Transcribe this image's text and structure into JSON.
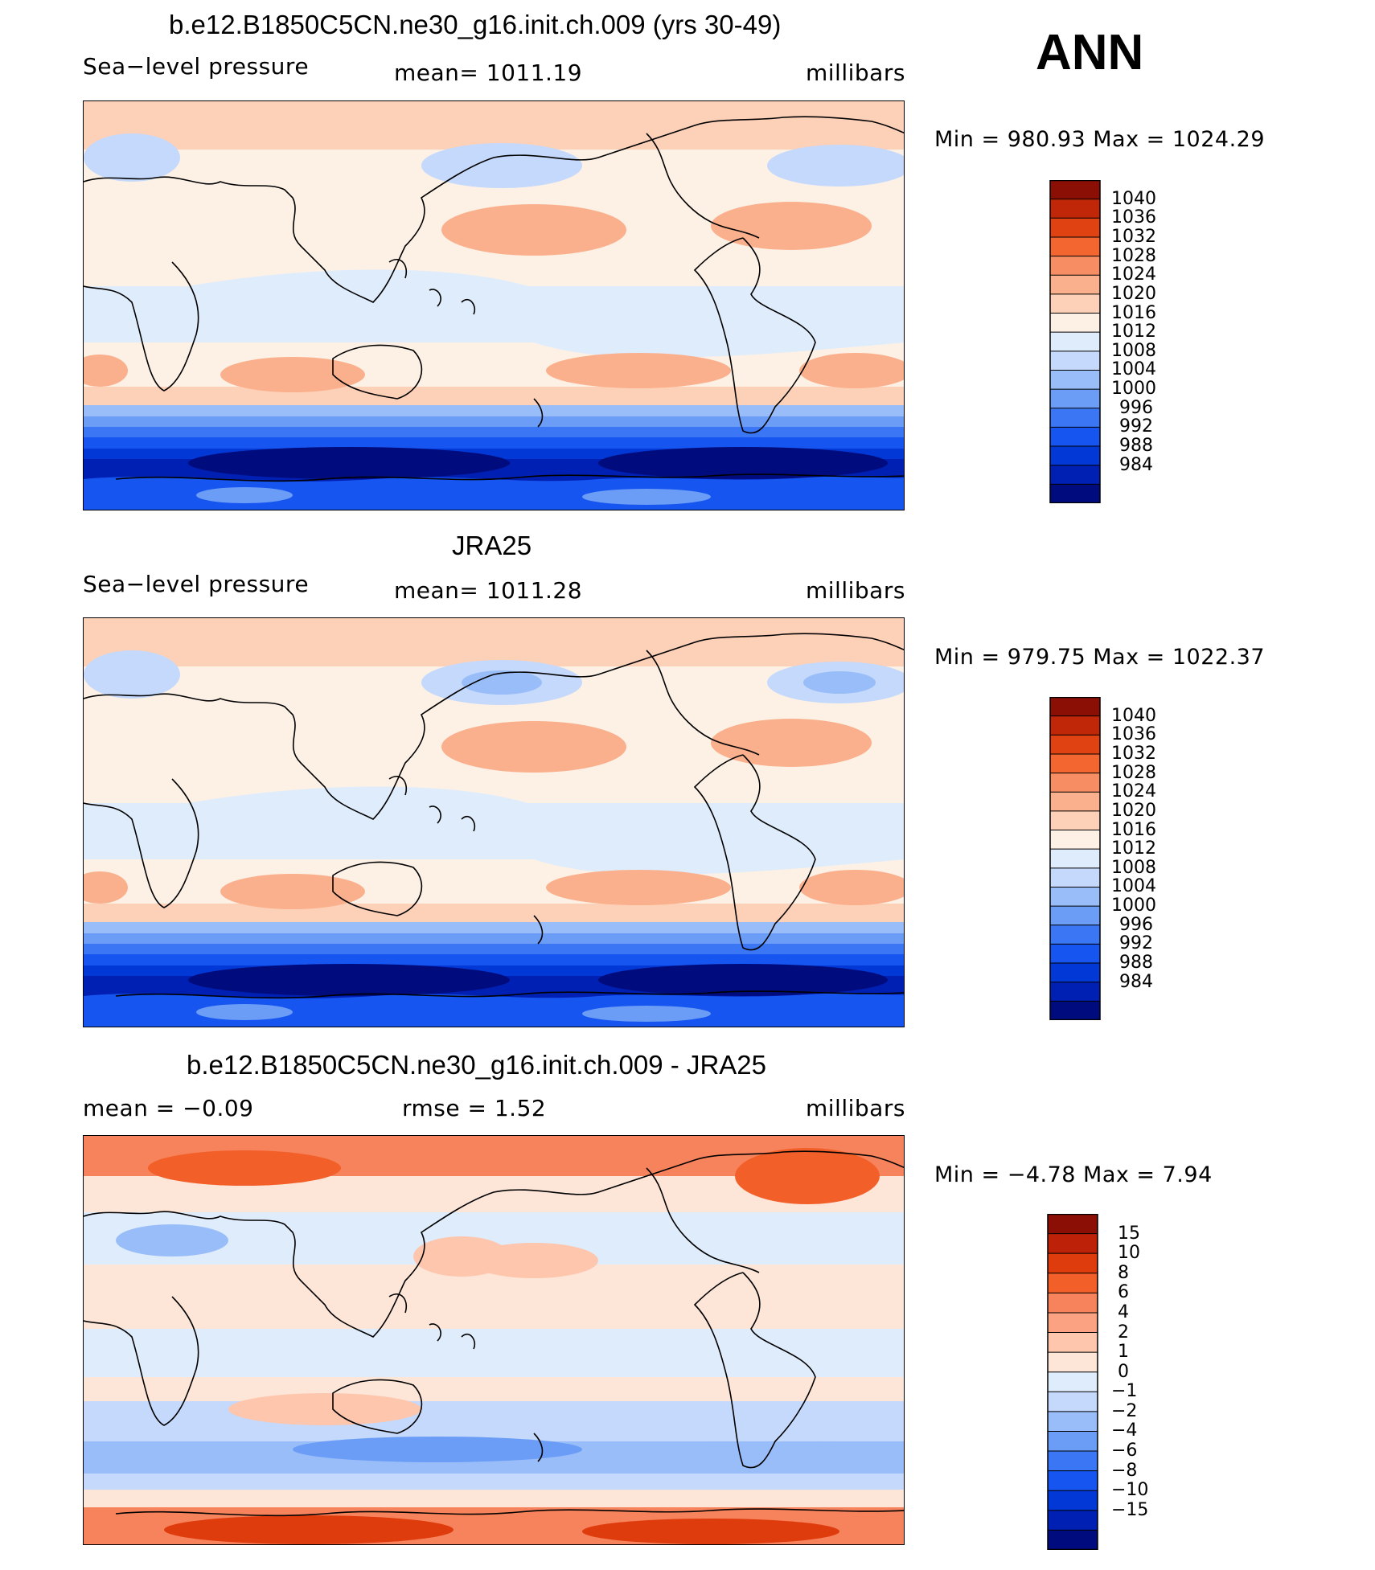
{
  "season": "ANN",
  "colors": {
    "abs_scale": [
      "#000c7d",
      "#0020b3",
      "#0239d6",
      "#1655f0",
      "#3b77f5",
      "#6b9df7",
      "#99bdf8",
      "#c4d9fb",
      "#dfecfc",
      "#fdf1e5",
      "#fdd0b8",
      "#fbb08d",
      "#f78e63",
      "#f3662f",
      "#e14212",
      "#c02608",
      "#8b0f05"
    ],
    "diff_scale": [
      "#000c7d",
      "#0020b3",
      "#0239d6",
      "#1655f0",
      "#3b77f5",
      "#6b9df7",
      "#99bdf8",
      "#c4d9fb",
      "#dfecfc",
      "#fde5d8",
      "#fdc6ad",
      "#fba283",
      "#f7835c",
      "#f25f28",
      "#df3c0e",
      "#bd2208",
      "#8b0f05"
    ]
  },
  "panels": [
    {
      "title": "b.e12.B1850C5CN.ne30_g16.init.ch.009 (yrs 30-49)",
      "left_label": "Sea−level pressure",
      "center_label": "mean= 1011.19",
      "units": "millibars",
      "minmax": "Min = 980.93 Max = 1024.29",
      "colorbar": {
        "labels": [
          "1040",
          "1036",
          "1032",
          "1028",
          "1024",
          "1020",
          "1016",
          "1012",
          "1008",
          "1004",
          "1000",
          "996",
          "992",
          "988",
          "984"
        ]
      }
    },
    {
      "title": "JRA25",
      "left_label": "Sea−level pressure",
      "center_label": "mean= 1011.28",
      "units": "millibars",
      "minmax": "Min = 979.75 Max = 1022.37",
      "colorbar": {
        "labels": [
          "1040",
          "1036",
          "1032",
          "1028",
          "1024",
          "1020",
          "1016",
          "1012",
          "1008",
          "1004",
          "1000",
          "996",
          "992",
          "988",
          "984"
        ]
      }
    },
    {
      "title": "b.e12.B1850C5CN.ne30_g16.init.ch.009 - JRA25",
      "left_label": "mean =  −0.09",
      "center_label": "rmse =   1.52",
      "units": "millibars",
      "minmax": "Min =  −4.78 Max =   7.94",
      "colorbar": {
        "labels": [
          "15",
          "10",
          "8",
          "6",
          "4",
          "2",
          "1",
          "0",
          "−1",
          "−2",
          "−4",
          "−6",
          "−8",
          "−10",
          "−15"
        ]
      }
    }
  ]
}
